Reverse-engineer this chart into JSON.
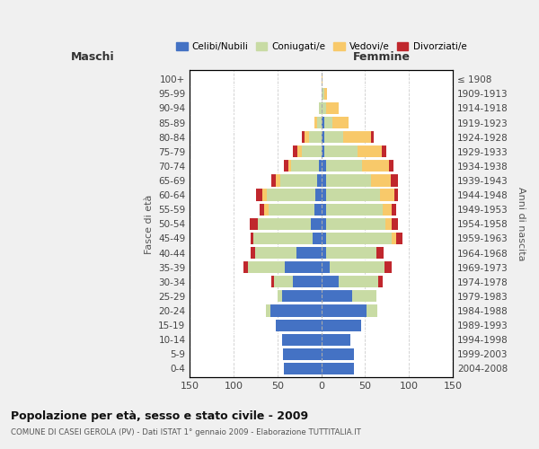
{
  "age_groups": [
    "0-4",
    "5-9",
    "10-14",
    "15-19",
    "20-24",
    "25-29",
    "30-34",
    "35-39",
    "40-44",
    "45-49",
    "50-54",
    "55-59",
    "60-64",
    "65-69",
    "70-74",
    "75-79",
    "80-84",
    "85-89",
    "90-94",
    "95-99",
    "100+"
  ],
  "birth_years": [
    "2004-2008",
    "1999-2003",
    "1994-1998",
    "1989-1993",
    "1984-1988",
    "1979-1983",
    "1974-1978",
    "1969-1973",
    "1964-1968",
    "1959-1963",
    "1954-1958",
    "1949-1953",
    "1944-1948",
    "1939-1943",
    "1934-1938",
    "1929-1933",
    "1924-1928",
    "1919-1923",
    "1914-1918",
    "1909-1913",
    "≤ 1908"
  ],
  "colors": {
    "celibi": "#4472C4",
    "coniugati": "#c8dba4",
    "vedovi": "#f8c96a",
    "divorziati": "#c0272d"
  },
  "maschi": {
    "celibi": [
      43,
      44,
      45,
      52,
      58,
      45,
      32,
      42,
      28,
      10,
      12,
      8,
      7,
      5,
      3,
      0,
      0,
      0,
      0,
      0,
      0
    ],
    "coniugati": [
      0,
      0,
      0,
      0,
      5,
      5,
      22,
      42,
      48,
      68,
      60,
      52,
      55,
      42,
      32,
      22,
      14,
      5,
      3,
      0,
      0
    ],
    "vedovi": [
      0,
      0,
      0,
      0,
      0,
      0,
      0,
      0,
      0,
      0,
      0,
      5,
      5,
      5,
      3,
      5,
      5,
      3,
      0,
      0,
      0
    ],
    "divorziati": [
      0,
      0,
      0,
      0,
      0,
      0,
      3,
      5,
      5,
      3,
      10,
      5,
      8,
      5,
      5,
      5,
      3,
      0,
      0,
      0,
      0
    ]
  },
  "femmine": {
    "nubili": [
      37,
      37,
      33,
      45,
      52,
      35,
      20,
      10,
      5,
      5,
      5,
      5,
      5,
      5,
      5,
      3,
      3,
      3,
      0,
      0,
      0
    ],
    "coniugate": [
      0,
      0,
      0,
      0,
      12,
      28,
      45,
      62,
      58,
      75,
      68,
      65,
      62,
      52,
      42,
      38,
      22,
      10,
      5,
      3,
      0
    ],
    "vedove": [
      0,
      0,
      0,
      0,
      0,
      0,
      0,
      0,
      0,
      5,
      7,
      10,
      16,
      22,
      30,
      28,
      32,
      18,
      15,
      3,
      1
    ],
    "divorziate": [
      0,
      0,
      0,
      0,
      0,
      0,
      5,
      8,
      8,
      8,
      8,
      5,
      5,
      8,
      5,
      5,
      3,
      0,
      0,
      0,
      0
    ]
  },
  "xlim": 150,
  "title": "Popolazione per età, sesso e stato civile - 2009",
  "subtitle": "COMUNE DI CASEI GEROLA (PV) - Dati ISTAT 1° gennaio 2009 - Elaborazione TUTTITALIA.IT",
  "xlabel_left": "Maschi",
  "xlabel_right": "Femmine",
  "ylabel_left": "Fasce di età",
  "ylabel_right": "Anni di nascita",
  "legend_labels": [
    "Celibi/Nubili",
    "Coniugati/e",
    "Vedovi/e",
    "Divorziati/e"
  ],
  "bg_color": "#f0f0f0",
  "plot_bg": "#ffffff"
}
